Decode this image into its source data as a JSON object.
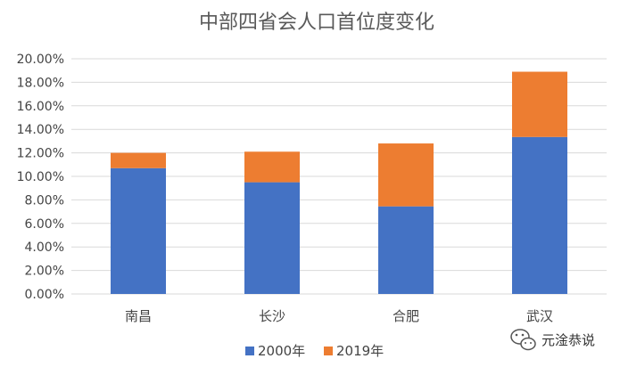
{
  "chart_data": {
    "type": "bar",
    "stacked": true,
    "title": "中部四省会人口首位度变化",
    "categories": [
      "南昌",
      "长沙",
      "合肥",
      "武汉"
    ],
    "series": [
      {
        "name": "2000年",
        "values": [
          10.7,
          9.5,
          7.45,
          13.35
        ],
        "color": "#4472c4"
      },
      {
        "name": "2019年",
        "values": [
          1.3,
          2.6,
          5.35,
          5.55
        ],
        "color": "#ed7d31"
      }
    ],
    "y_ticks": [
      "0.00%",
      "2.00%",
      "4.00%",
      "6.00%",
      "8.00%",
      "10.00%",
      "12.00%",
      "14.00%",
      "16.00%",
      "18.00%",
      "20.00%"
    ],
    "ylim": [
      0,
      20
    ],
    "grid": true,
    "legend_position": "bottom"
  },
  "watermark": {
    "text": "元淦恭说",
    "icon": "wechat-icon"
  }
}
